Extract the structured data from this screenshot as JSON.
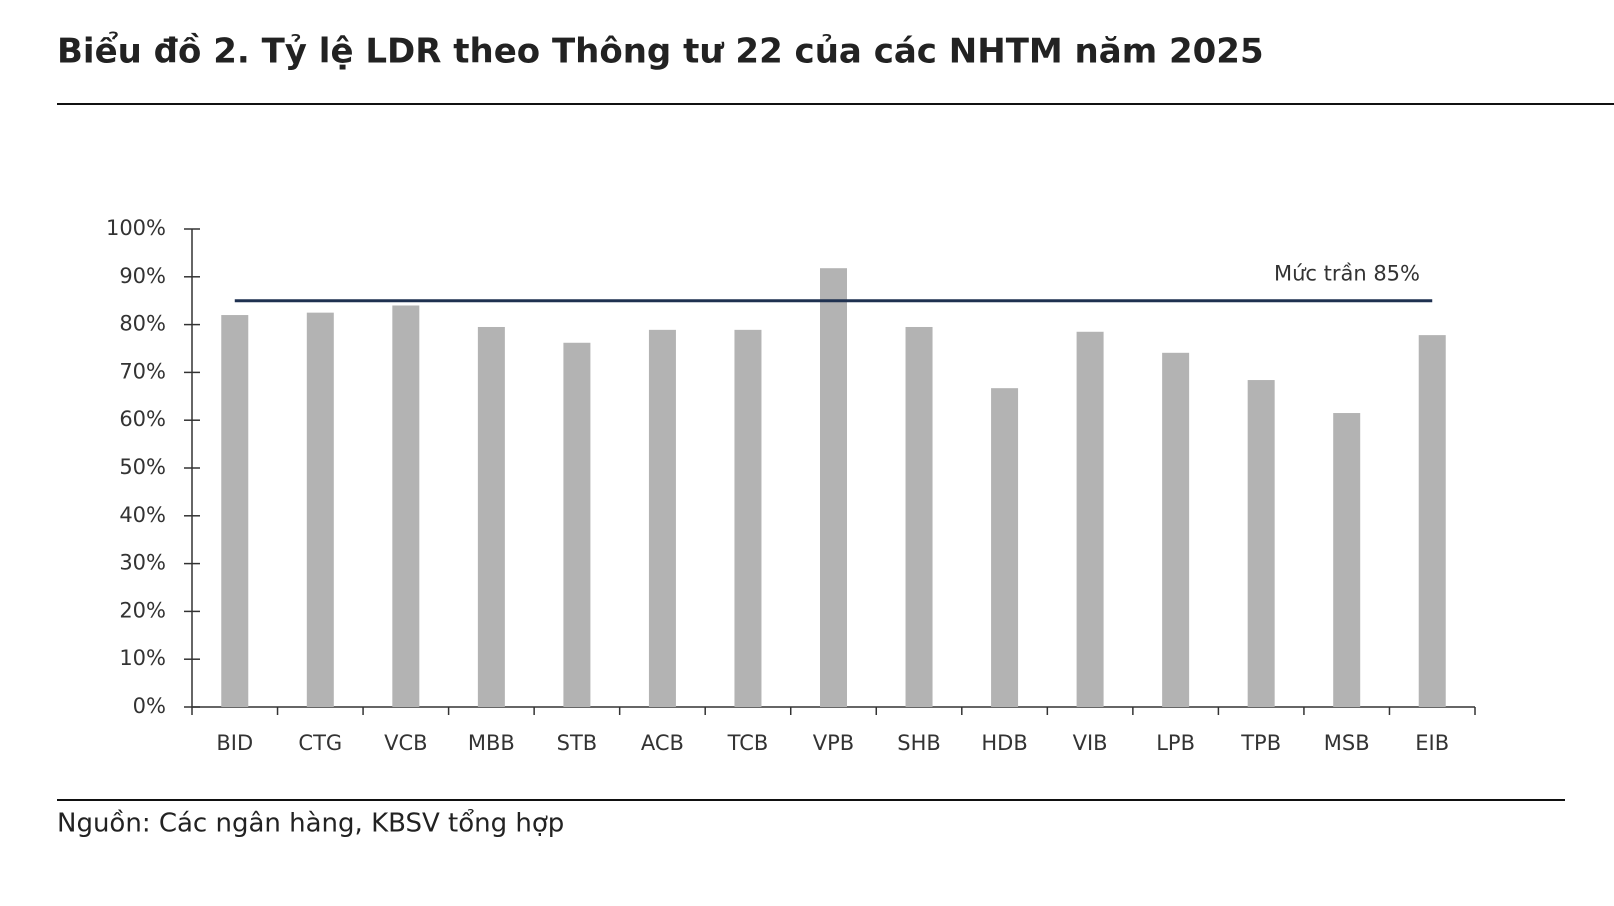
{
  "chart_data": {
    "type": "bar",
    "title": "Biểu đồ 2. Tỷ lệ LDR theo Thông tư 22 của các NHTM năm 2025",
    "categories": [
      "BID",
      "CTG",
      "VCB",
      "MBB",
      "STB",
      "ACB",
      "TCB",
      "VPB",
      "SHB",
      "HDB",
      "VIB",
      "LPB",
      "TPB",
      "MSB",
      "EIB"
    ],
    "values": [
      82,
      82.5,
      84,
      79.5,
      76.2,
      78.9,
      78.9,
      91.8,
      79.5,
      66.7,
      78.5,
      74.1,
      68.4,
      61.5,
      77.8
    ],
    "color": "#b3b3b3",
    "ylim": [
      0,
      100
    ],
    "yticks": [
      {
        "value": 0,
        "label": "0%"
      },
      {
        "value": 10,
        "label": "10%"
      },
      {
        "value": 20,
        "label": "20%"
      },
      {
        "value": 30,
        "label": "30%"
      },
      {
        "value": 40,
        "label": "40%"
      },
      {
        "value": 50,
        "label": "50%"
      },
      {
        "value": 60,
        "label": "60%"
      },
      {
        "value": 70,
        "label": "70%"
      },
      {
        "value": 80,
        "label": "80%"
      },
      {
        "value": 90,
        "label": "90%"
      },
      {
        "value": 100,
        "label": "100%"
      }
    ],
    "grid": false,
    "reference_line": {
      "value": 85,
      "label": "Mức trần 85%",
      "color": "#1f3150"
    },
    "source": "Nguồn: Các ngân hàng, KBSV tổng hợp"
  }
}
